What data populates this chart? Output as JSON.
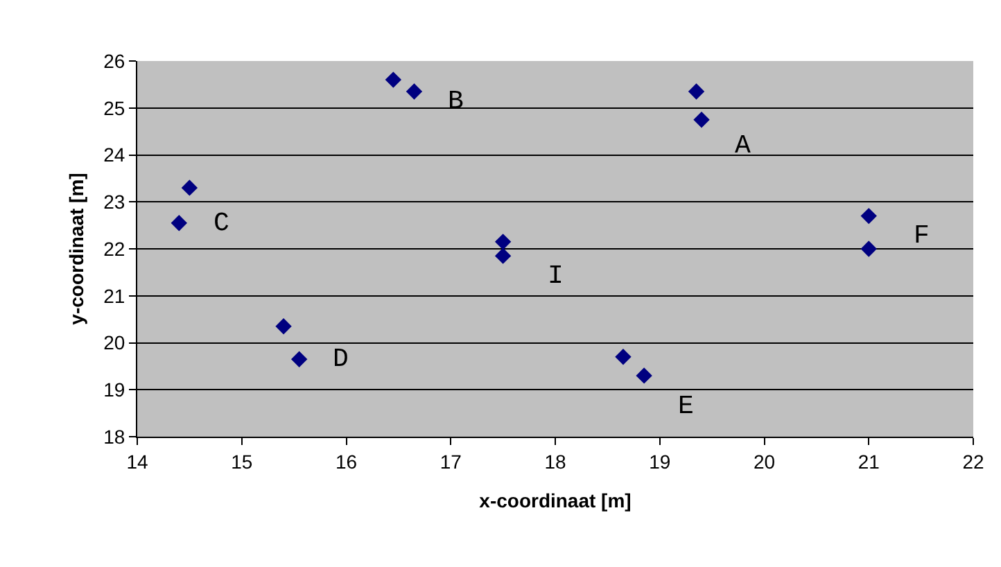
{
  "chart_data": {
    "type": "scatter",
    "xlabel": "x-coordinaat [m]",
    "ylabel": "y-coordinaat [m]",
    "x": [
      14.4,
      14.5,
      16.45,
      16.65,
      17.5,
      17.5,
      19.35,
      19.4,
      21.0,
      21.0,
      15.4,
      15.55,
      18.65,
      18.85
    ],
    "series": [
      {
        "color": "#000080",
        "values": [
          22.55,
          23.3,
          25.6,
          25.35,
          22.15,
          21.85,
          25.35,
          24.75,
          22.7,
          22.0,
          20.35,
          19.65,
          19.7,
          19.3
        ]
      }
    ],
    "marker": "diamond",
    "grid": "y",
    "xlim": [
      14,
      22
    ],
    "xticks": [
      14,
      15,
      16,
      17,
      18,
      19,
      20,
      21,
      22
    ],
    "ylim": [
      18,
      26
    ],
    "yticks": [
      18,
      19,
      20,
      21,
      22,
      23,
      24,
      25,
      26
    ],
    "annotations": [
      "C",
      "B",
      "I",
      "A",
      "F",
      "D",
      "E"
    ]
  }
}
